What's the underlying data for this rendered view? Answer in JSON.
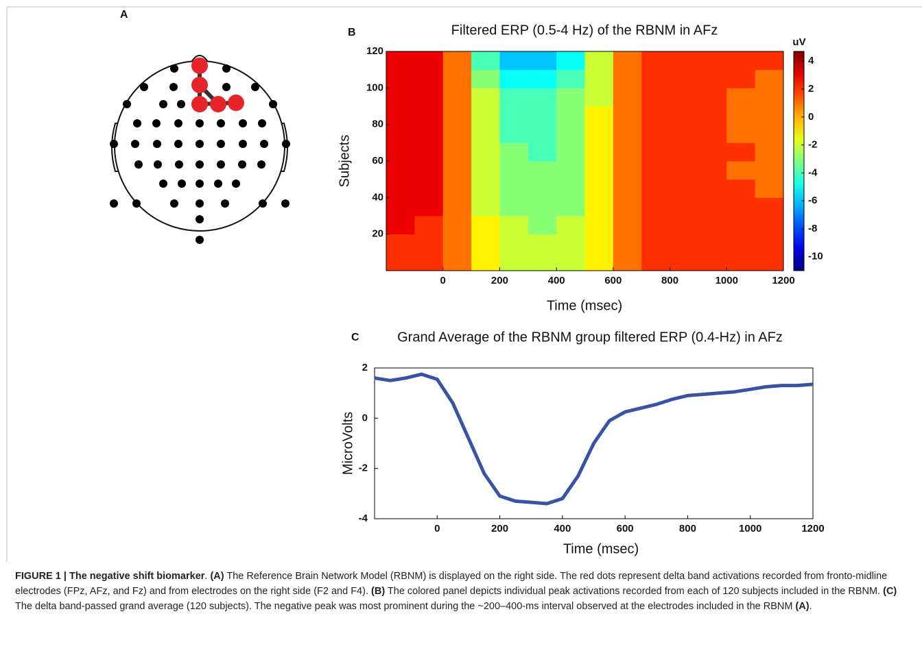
{
  "panel_labels": [
    "A",
    "B",
    "C"
  ],
  "chart_data": [
    {
      "type": "heatmap",
      "title": "Filtered ERP (0.5-4 Hz) of the RBNM in AFz",
      "xlabel": "Time (msec)",
      "ylabel": "Subjects",
      "xbins": [
        -200,
        -100,
        0,
        100,
        200,
        300,
        400,
        500,
        600,
        700,
        800,
        900,
        1000,
        1100,
        1200
      ],
      "ybins": [
        0,
        10,
        20,
        30,
        40,
        50,
        60,
        70,
        80,
        90,
        100,
        110,
        120
      ],
      "values": [
        [
          2,
          2,
          1,
          -1,
          -2,
          -2,
          -2,
          -1,
          1,
          2,
          2,
          2,
          2,
          2
        ],
        [
          2,
          2,
          1,
          -1,
          -2,
          -2,
          -2,
          -1,
          1,
          2,
          2,
          2,
          2,
          2
        ],
        [
          3,
          2,
          1,
          -1,
          -2,
          -3,
          -2,
          -1,
          1,
          2,
          2,
          2,
          2,
          2
        ],
        [
          3,
          3,
          1,
          -2,
          -3,
          -3,
          -3,
          -1,
          1,
          2,
          2,
          2,
          2,
          2
        ],
        [
          3,
          3,
          1,
          -2,
          -3,
          -3,
          -3,
          -1,
          1,
          2,
          2,
          2,
          2,
          1
        ],
        [
          3,
          3,
          1,
          -2,
          -3,
          -3,
          -3,
          -1,
          1,
          2,
          2,
          2,
          1,
          1
        ],
        [
          3,
          3,
          1,
          -2,
          -3,
          -4,
          -3,
          -1,
          1,
          2,
          2,
          2,
          2,
          1
        ],
        [
          3,
          3,
          1,
          -2,
          -4,
          -4,
          -3,
          -1,
          1,
          2,
          2,
          2,
          1,
          1
        ],
        [
          3,
          3,
          1,
          -2,
          -4,
          -4,
          -3,
          -1,
          1,
          2,
          2,
          2,
          1,
          1
        ],
        [
          3,
          3,
          1,
          -2,
          -4,
          -4,
          -3,
          -2,
          1,
          2,
          2,
          2,
          1,
          1
        ],
        [
          3,
          3,
          1,
          -3,
          -5,
          -5,
          -4,
          -2,
          1,
          2,
          2,
          2,
          2,
          1
        ],
        [
          3,
          3,
          1,
          -4,
          -6,
          -6,
          -5,
          -2,
          1,
          2,
          2,
          2,
          2,
          2
        ]
      ],
      "xlim": [
        -200,
        1200
      ],
      "xticks": [
        0,
        200,
        400,
        600,
        800,
        1000,
        1200
      ],
      "ylim": [
        0,
        120
      ],
      "yticks": [
        20,
        40,
        60,
        80,
        100,
        120
      ],
      "colormap": "jet",
      "colorbar_label": "uV",
      "zlim": [
        -11,
        4.7
      ],
      "zticks": [
        4,
        2,
        0,
        -2,
        -4,
        -6,
        -8,
        -10
      ]
    },
    {
      "type": "line",
      "title": "Grand Average of the RBNM group filtered ERP (0.4-Hz) in AFz",
      "xlabel": "Time (msec)",
      "ylabel": "MicroVolts",
      "x": [
        -200,
        -150,
        -100,
        -50,
        0,
        50,
        100,
        150,
        200,
        250,
        300,
        350,
        400,
        450,
        500,
        550,
        600,
        650,
        700,
        750,
        800,
        850,
        900,
        950,
        1000,
        1050,
        1100,
        1150,
        1200
      ],
      "values": [
        1.6,
        1.5,
        1.6,
        1.75,
        1.55,
        0.6,
        -0.8,
        -2.2,
        -3.1,
        -3.3,
        -3.35,
        -3.4,
        -3.2,
        -2.3,
        -1.0,
        -0.1,
        0.25,
        0.4,
        0.55,
        0.75,
        0.9,
        0.95,
        1.0,
        1.05,
        1.15,
        1.25,
        1.3,
        1.3,
        1.35
      ],
      "color": "#3853a4",
      "xlim": [
        -200,
        1200
      ],
      "xticks": [
        0,
        200,
        400,
        600,
        800,
        1000,
        1200
      ],
      "ylim": [
        -4,
        2
      ],
      "yticks": [
        -4,
        -2,
        0,
        2
      ]
    }
  ],
  "caption": {
    "runs": [
      {
        "text": "FIGURE 1 | The negative shift biomarker",
        "bold": true
      },
      {
        "text": ". ",
        "bold": false
      },
      {
        "text": "(A)",
        "bold": true
      },
      {
        "text": " The Reference Brain Network Model (RBNM) is displayed on the right side. The red dots represent delta band activations recorded from fronto-midline electrodes (FPz, AFz, and Fz) and from electrodes on the right side (F2 and F4). ",
        "bold": false
      },
      {
        "text": "(B)",
        "bold": true
      },
      {
        "text": " The colored panel depicts individual peak activations recorded from each of 120 subjects included in the RBNM. ",
        "bold": false
      },
      {
        "text": "(C)",
        "bold": true
      },
      {
        "text": " The delta band-passed grand average (120 subjects). The negative peak was most prominent during the ~200–400-ms interval observed at the electrodes included in the RBNM ",
        "bold": false
      },
      {
        "text": "(A)",
        "bold": true
      },
      {
        "text": ".",
        "bold": false
      }
    ]
  }
}
